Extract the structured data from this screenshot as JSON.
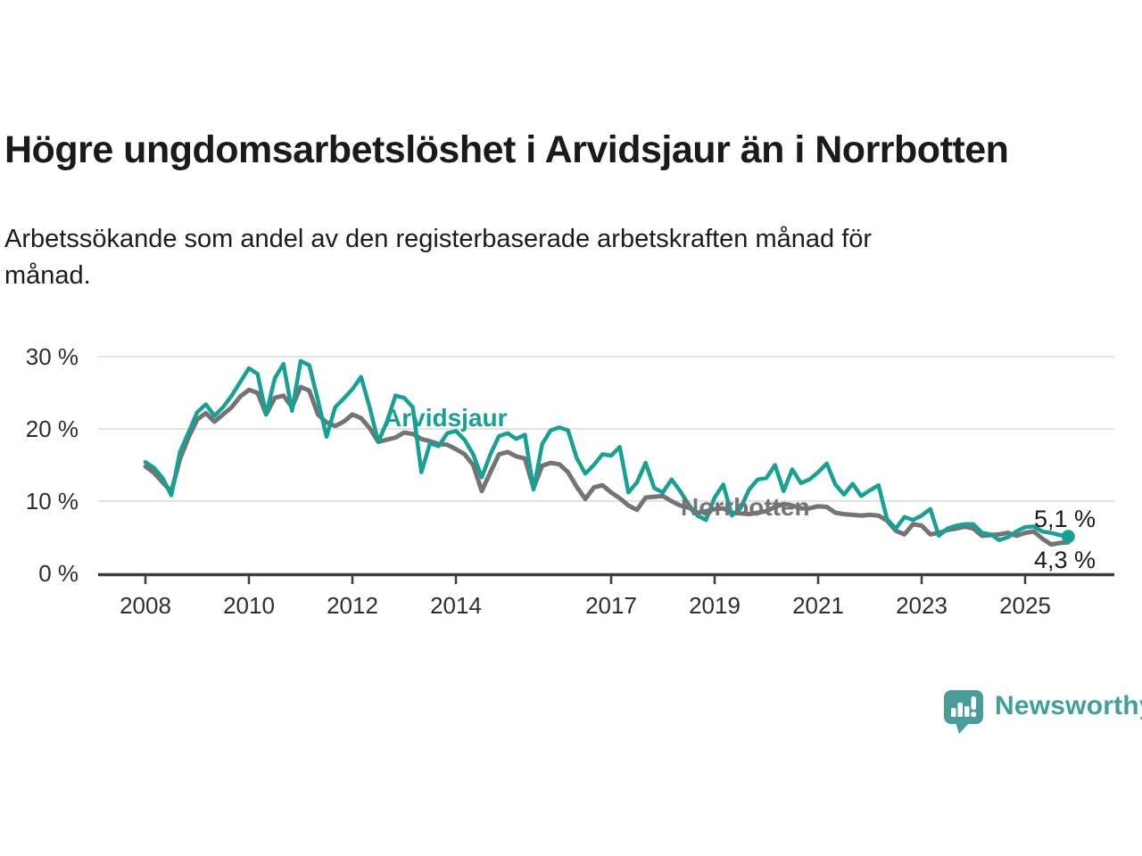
{
  "page": {
    "title": "Högre ungdomsarbetslöshet i Arvidsjaur än i Norrbotten",
    "subtitle_line1": "Arbetssökande som andel av den registerbaserade arbetskraften månad för",
    "subtitle_line2": "månad.",
    "background_color": "#ffffff"
  },
  "branding": {
    "wordmark": "Newsworthy",
    "icon": "bar-chart-speech-bubble-icon",
    "icon_color": "#4a9d98",
    "wordmark_color": "#3fa09a"
  },
  "chart_data": {
    "type": "line",
    "title": "Högre ungdomsarbetslöshet i Arvidsjaur än i Norrbotten",
    "subtitle": "Arbetssökande som andel av den registerbaserade arbetskraften månad för månad.",
    "x_unit": "year (monthly series, sampled every 2 months)",
    "x_start": 2008.0,
    "x_step_years": 0.1666667,
    "x_ticks": [
      2008,
      2010,
      2012,
      2014,
      2017,
      2019,
      2021,
      2023,
      2025
    ],
    "y_ticks": [
      0,
      10,
      20,
      30
    ],
    "y_tick_labels": [
      "0 %",
      "10 %",
      "20 %",
      "30 %"
    ],
    "ylim": [
      0,
      32
    ],
    "xlim": [
      2007.1,
      2026.7
    ],
    "grid": "horizontal",
    "legend_position": "inline-labels",
    "axis_color": "#3d3d3d",
    "grid_color": "#d9d9d9",
    "end_label_color": "#1a1a1a",
    "series": [
      {
        "name": "Arvidsjaur",
        "label": "Arvidsjaur",
        "color": "#17a094",
        "end_label": "5,1 %",
        "end_value": 5.1,
        "values": [
          15.4,
          14.6,
          13.2,
          10.8,
          16.8,
          19.5,
          22.3,
          23.4,
          21.8,
          23.0,
          24.6,
          26.5,
          28.4,
          27.6,
          22.0,
          27.0,
          29.0,
          22.5,
          29.4,
          28.8,
          24.0,
          18.9,
          23.0,
          24.2,
          25.5,
          27.2,
          23.0,
          18.2,
          21.0,
          24.6,
          24.3,
          23.0,
          14.0,
          18.0,
          17.6,
          19.4,
          19.7,
          18.5,
          16.5,
          13.3,
          16.5,
          19.0,
          19.4,
          18.6,
          19.2,
          11.6,
          17.9,
          19.8,
          20.2,
          19.8,
          16.0,
          13.8,
          15.0,
          16.5,
          16.3,
          17.5,
          11.2,
          12.6,
          15.3,
          11.8,
          11.2,
          13.0,
          11.4,
          9.5,
          8.0,
          7.4,
          10.5,
          12.3,
          8.0,
          9.0,
          11.6,
          13.0,
          13.2,
          15.0,
          11.4,
          14.4,
          12.5,
          13.0,
          14.0,
          15.2,
          12.3,
          10.9,
          12.4,
          10.7,
          11.5,
          12.2,
          7.5,
          6.2,
          7.8,
          7.4,
          8.0,
          8.9,
          5.2,
          6.2,
          6.6,
          6.8,
          6.8,
          5.6,
          5.4,
          4.6,
          5.0,
          5.8,
          6.4,
          6.5,
          5.8,
          5.6,
          5.3,
          5.1
        ]
      },
      {
        "name": "Norrbotten",
        "label": "Norrbotten",
        "color": "#747474",
        "end_label": "4,3 %",
        "end_value": 4.3,
        "values": [
          14.8,
          13.9,
          12.6,
          11.3,
          15.8,
          18.8,
          21.3,
          22.2,
          21.0,
          22.0,
          23.0,
          24.5,
          25.4,
          25.0,
          22.0,
          24.3,
          24.6,
          23.0,
          25.8,
          25.3,
          22.0,
          20.9,
          20.4,
          21.0,
          22.0,
          21.5,
          20.1,
          18.2,
          18.5,
          18.8,
          19.5,
          19.3,
          18.6,
          18.3,
          17.9,
          17.8,
          17.2,
          16.5,
          15.0,
          11.4,
          14.0,
          16.5,
          16.8,
          16.2,
          15.9,
          11.8,
          14.9,
          15.3,
          15.1,
          14.0,
          12.0,
          10.3,
          11.9,
          12.2,
          11.2,
          10.4,
          9.4,
          8.8,
          10.5,
          10.6,
          10.7,
          10.0,
          9.4,
          9.1,
          8.4,
          8.6,
          8.9,
          9.0,
          8.4,
          8.3,
          8.2,
          8.4,
          8.6,
          9.2,
          9.6,
          9.4,
          9.0,
          9.0,
          9.3,
          9.2,
          8.4,
          8.2,
          8.1,
          8.0,
          8.1,
          8.0,
          7.3,
          5.9,
          5.4,
          6.8,
          6.6,
          5.4,
          5.6,
          6.0,
          6.2,
          6.5,
          6.2,
          5.2,
          5.3,
          5.4,
          5.6,
          5.2,
          5.6,
          5.8,
          4.8,
          4.0,
          4.2,
          4.3
        ]
      }
    ]
  }
}
